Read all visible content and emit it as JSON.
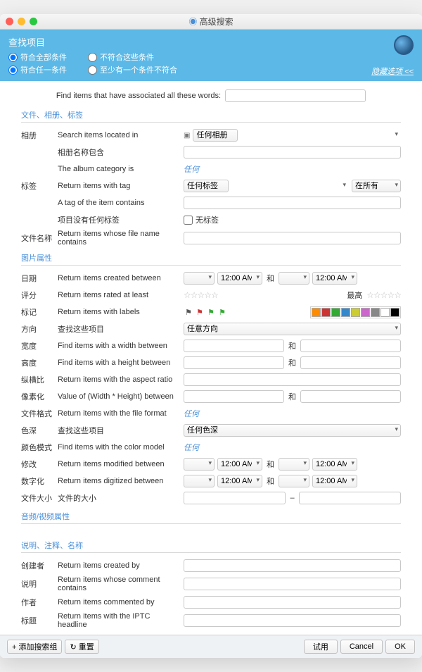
{
  "window": {
    "title": "高级搜索"
  },
  "header": {
    "title": "查找项目",
    "radios1": {
      "a": "符合全部条件",
      "b": "不符合这些条件"
    },
    "radios2": {
      "a": "符合任一条件",
      "b": "至少有一个条件不符合"
    },
    "hide_link": "隐藏选项 <<"
  },
  "find": {
    "label": "Find items that have associated all these words:"
  },
  "sec1": {
    "title": "文件、相册、标签"
  },
  "album": {
    "label": "相册",
    "located": "Search items located in",
    "located_val": "任何相册",
    "name_contains": "相册名称包含",
    "category_is": "The album category is",
    "any": "任何"
  },
  "tags": {
    "label": "标签",
    "return_with": "Return items with tag",
    "anytag": "任何标签",
    "inall": "在所有",
    "contains": "A tag of the item contains",
    "notag_label": "项目没有任何标签",
    "notag_cb": "无标签"
  },
  "filename": {
    "label": "文件名称",
    "desc": "Return items whose file name contains"
  },
  "sec2": {
    "title": "图片属性"
  },
  "date": {
    "label": "日期",
    "desc": "Return items created between",
    "time": "12:00 AM",
    "and": "和"
  },
  "rating": {
    "label": "评分",
    "desc": "Return items rated at least",
    "max": "最高"
  },
  "labels": {
    "label": "标记",
    "desc": "Return items with labels",
    "colors": [
      "#ff8c00",
      "#cc3333",
      "#33aa33",
      "#3388cc",
      "#cccc33",
      "#cc66cc",
      "#888888",
      "#ffffff",
      "#000000"
    ]
  },
  "orient": {
    "label": "方向",
    "desc": "查找这些项目",
    "val": "任意方向"
  },
  "width": {
    "label": "宽度",
    "desc": "Find items with a width between",
    "and": "和"
  },
  "height": {
    "label": "高度",
    "desc": "Find items with a height between",
    "and": "和"
  },
  "aspect": {
    "label": "纵横比",
    "desc": "Return items with the aspect ratio"
  },
  "pixel": {
    "label": "像素化",
    "desc": "Value of (Width * Height) between",
    "and": "和"
  },
  "format": {
    "label": "文件格式",
    "desc": "Return items with the file format",
    "any": "任何"
  },
  "depth": {
    "label": "色深",
    "desc": "查找这些项目",
    "val": "任何色深"
  },
  "colormodel": {
    "label": "颜色模式",
    "desc": "Find items with the color model",
    "any": "任何"
  },
  "modified": {
    "label": "修改",
    "desc": "Return items modified between",
    "time": "12:00 AM",
    "and": "和"
  },
  "digitized": {
    "label": "数字化",
    "desc": "Return items digitized between",
    "time": "12:00 AM",
    "and": "和"
  },
  "filesize": {
    "label": "文件大小",
    "desc": "文件的大小",
    "dash": "–"
  },
  "sec3": {
    "title": "音频/视频属性"
  },
  "sec4": {
    "title": "说明、注释、名称"
  },
  "creator": {
    "label": "创建者",
    "desc": "Return items created by"
  },
  "comment": {
    "label": "说明",
    "desc": "Return items whose comment contains"
  },
  "author": {
    "label": "作者",
    "desc": "Return items commented by"
  },
  "headline": {
    "label": "标题",
    "desc": "Return items with the IPTC headline"
  },
  "footer": {
    "add": "+ 添加搜索组",
    "reset": "↻ 重置",
    "try": "试用",
    "cancel": "Cancel",
    "ok": "OK"
  }
}
